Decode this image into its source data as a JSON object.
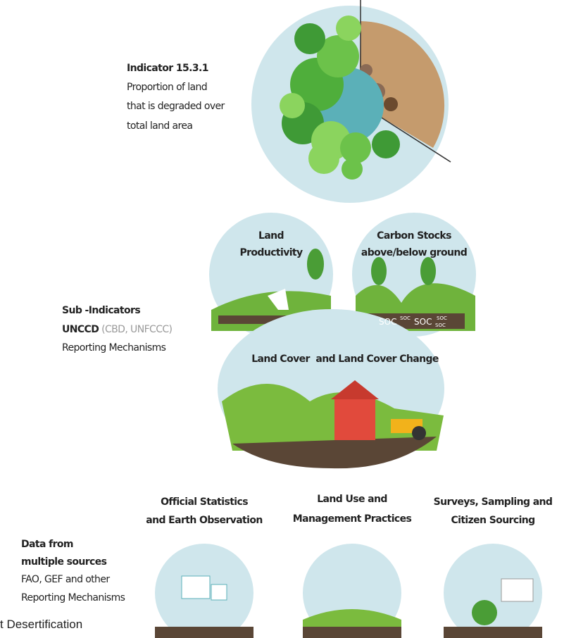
{
  "indicator": {
    "title": "Indicator 15.3.1",
    "description": [
      "Proportion of land",
      "that is degraded over",
      "total land area"
    ]
  },
  "sub_indicators": {
    "title": "Sub -Indicators",
    "source": "UNCCD",
    "source_note": "(CBD, UNFCCC)",
    "subtitle": "Reporting Mechanisms",
    "items": [
      {
        "label": [
          "Land",
          "Productivity"
        ]
      },
      {
        "label": [
          "Carbon Stocks",
          "above/below ground"
        ],
        "soc": [
          "SOC",
          "SOC",
          "SOC",
          "SOC",
          "SOC"
        ]
      },
      {
        "label": [
          "Land Cover  and Land Cover Change"
        ]
      }
    ]
  },
  "data_sources": {
    "title": [
      "Data from",
      "multiple sources"
    ],
    "subtitle": [
      "FAO, GEF and other",
      "Reporting Mechanisms"
    ],
    "items": [
      {
        "label": [
          "Official Statistics",
          "and Earth Observation"
        ]
      },
      {
        "label": [
          "Land Use and",
          "Management Practices"
        ]
      },
      {
        "label": [
          "Surveys, Sampling and",
          "Citizen Sourcing"
        ]
      }
    ]
  },
  "caption": "t Desertification"
}
